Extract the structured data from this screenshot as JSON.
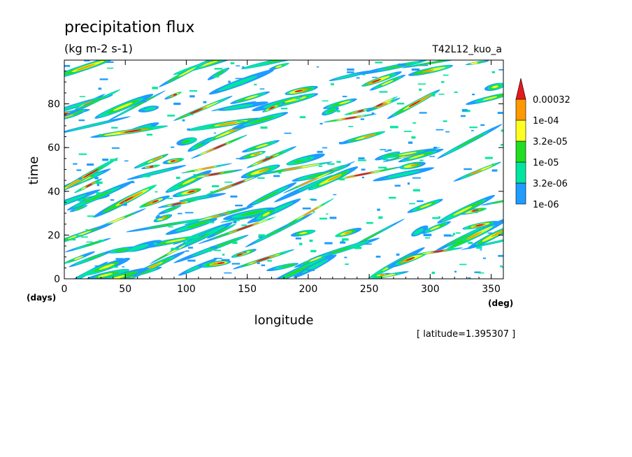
{
  "chart_data": {
    "type": "heatmap",
    "title": "precipitation flux",
    "units": "(kg m-2 s-1)",
    "run_label": "T42L12_kuo_a",
    "xlabel": "longitude",
    "ylabel": "time",
    "x_unit": "(deg)",
    "y_unit": "(days)",
    "xlim": [
      0,
      360
    ],
    "ylim": [
      0,
      100
    ],
    "x_ticks": [
      0,
      50,
      100,
      150,
      200,
      250,
      300,
      350
    ],
    "y_ticks": [
      0,
      20,
      40,
      60,
      80
    ],
    "footnote": "[ latitude=1.395307 ]",
    "colorbar": {
      "levels": [
        {
          "label": "1e-06",
          "color": "#1e9cff"
        },
        {
          "label": "3.2e-06",
          "color": "#00e6a0"
        },
        {
          "label": "1e-05",
          "color": "#22dd22"
        },
        {
          "label": "3.2e-05",
          "color": "#ffff22"
        },
        {
          "label": "1e-04",
          "color": "#ff9900"
        },
        {
          "label": "0.00032",
          "color": "#e6191e"
        }
      ],
      "extend": "max"
    },
    "field_description": "Hovmoller diagram of precipitation flux; eastward-propagating streaks with scattered maxima above 0.00032"
  }
}
